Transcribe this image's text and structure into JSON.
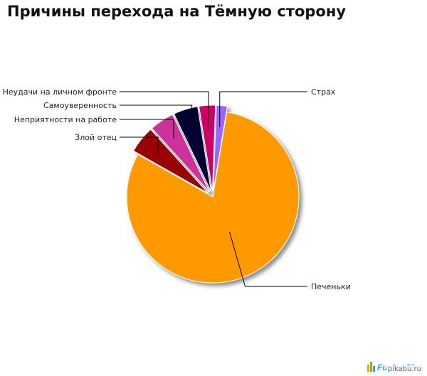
{
  "chart_data": {
    "type": "pie",
    "title": "Причины перехода на Тёмную сторону",
    "slices": [
      {
        "label": "Страх",
        "value": 2,
        "color": "#9966FF"
      },
      {
        "label": "Печеньки",
        "value": 79,
        "color": "#FF9900"
      },
      {
        "label": "Злой отец",
        "value": 5,
        "color": "#990000"
      },
      {
        "label": "Неприятности на работе",
        "value": 4.5,
        "color": "#CC3399"
      },
      {
        "label": "Самоуверенность",
        "value": 4.5,
        "color": "#000033"
      },
      {
        "label": "Неудачи на личном фронте",
        "value": 3,
        "color": "#CC0066"
      }
    ],
    "start_angle_deg": -88
  },
  "logo": {
    "bar_colors": [
      "#FF9900",
      "#66CC00",
      "#3399FF"
    ],
    "text": "FusionCharts"
  },
  "watermark": "pikabu.ru"
}
